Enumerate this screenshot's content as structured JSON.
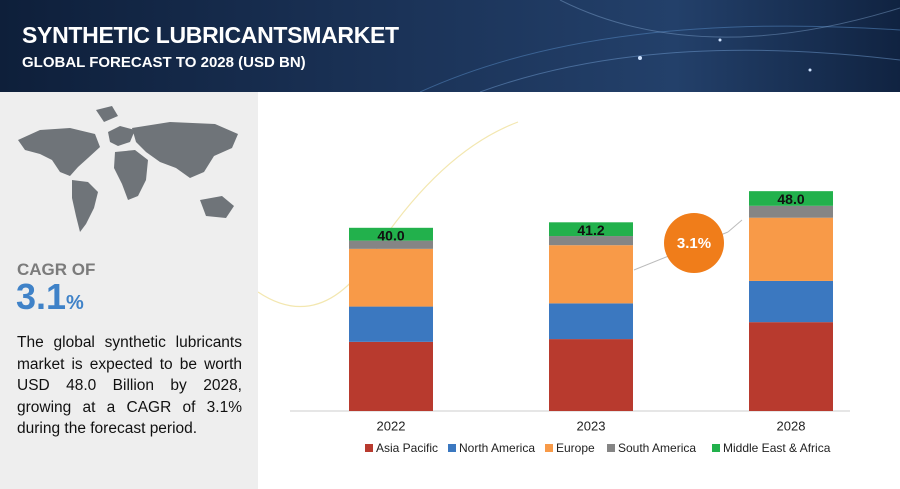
{
  "header": {
    "title": "SYNTHETIC LUBRICANTSMARKET",
    "subtitle": "GLOBAL FORECAST TO 2028 (USD BN)"
  },
  "sidebar": {
    "cagr_label": "CAGR OF",
    "cagr_value": "3.1",
    "cagr_unit": "%",
    "description": "The global synthetic lubricants market is expected to be worth USD 48.0 Billion by 2028, growing at a CAGR of 3.1% during the forecast period."
  },
  "chart_data": {
    "type": "stacked_bar",
    "categories": [
      "2022",
      "2023",
      "2028"
    ],
    "ylim": [
      0,
      50
    ],
    "series": [
      {
        "name": "Asia Pacific",
        "color": "#b83a2e",
        "values": [
          15.1,
          15.7,
          19.4
        ]
      },
      {
        "name": "North America",
        "color": "#3b78c0",
        "values": [
          7.7,
          7.8,
          9.0
        ]
      },
      {
        "name": "Europe",
        "color": "#f89a48",
        "values": [
          12.6,
          12.7,
          13.8
        ]
      },
      {
        "name": "South America",
        "color": "#858585",
        "values": [
          1.8,
          2.0,
          2.6
        ]
      },
      {
        "name": "Middle East & Africa",
        "color": "#22b14c",
        "values": [
          2.8,
          3.0,
          3.2
        ]
      }
    ],
    "totals": [
      40,
      41.2,
      48
    ],
    "totals_labels": [
      "40.0",
      "41.2",
      "48.0"
    ],
    "annotation": "3.1%"
  }
}
